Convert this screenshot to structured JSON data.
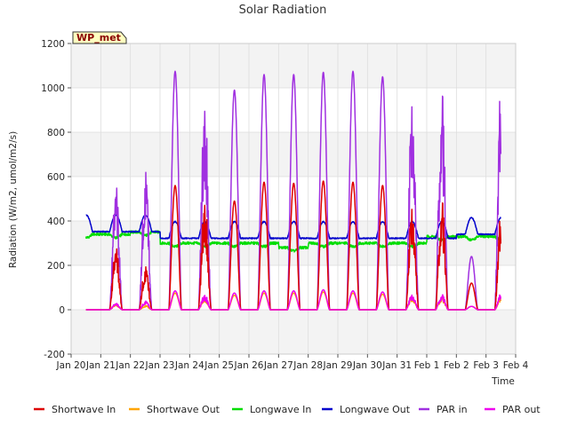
{
  "chart_data": {
    "type": "line",
    "title": "Solar Radiation",
    "xlabel": "Time",
    "ylabel": "Radiation (W/m2, umol/m2/s)",
    "ylim": [
      -200,
      1200
    ],
    "yticks": [
      -200,
      0,
      200,
      400,
      600,
      800,
      1000,
      1200
    ],
    "xlim": [
      0,
      15
    ],
    "xtick_labels": [
      "Jan 20",
      "Jan 21",
      "Jan 22",
      "Jan 23",
      "Jan 24",
      "Jan 25",
      "Jan 26",
      "Jan 27",
      "Jan 28",
      "Jan 29",
      "Jan 30",
      "Jan 31",
      "Feb 1",
      "Feb 2",
      "Feb 3",
      "Feb 4"
    ],
    "grid": true,
    "legend_position": "bottom",
    "site_badge": "WP_met",
    "x_units": "days since Jan 20",
    "series": [
      {
        "name": "Shortwave In",
        "color": "#dd0000",
        "daily_peaks": [
          null,
          290,
          200,
          560,
          510,
          490,
          575,
          570,
          580,
          575,
          560,
          480,
          500,
          120,
          450
        ]
      },
      {
        "name": "Shortwave Out",
        "color": "#ffa500",
        "daily_peaks": [
          null,
          25,
          20,
          75,
          60,
          65,
          75,
          75,
          80,
          75,
          70,
          60,
          60,
          15,
          60
        ]
      },
      {
        "name": "Longwave In",
        "color": "#00dd00",
        "values_summary": "varies 270-350"
      },
      {
        "name": "Longwave Out",
        "color": "#0000cc",
        "values_summary": "varies 310-405"
      },
      {
        "name": "PAR in",
        "color": "#a030e0",
        "daily_peaks": [
          null,
          580,
          640,
          1075,
          970,
          990,
          1060,
          1060,
          1070,
          1075,
          1050,
          970,
          1000,
          240,
          1060
        ]
      },
      {
        "name": "PAR out",
        "color": "#ee00ee",
        "daily_peaks": [
          null,
          30,
          40,
          85,
          70,
          75,
          85,
          85,
          90,
          85,
          80,
          70,
          70,
          15,
          75
        ]
      }
    ]
  }
}
